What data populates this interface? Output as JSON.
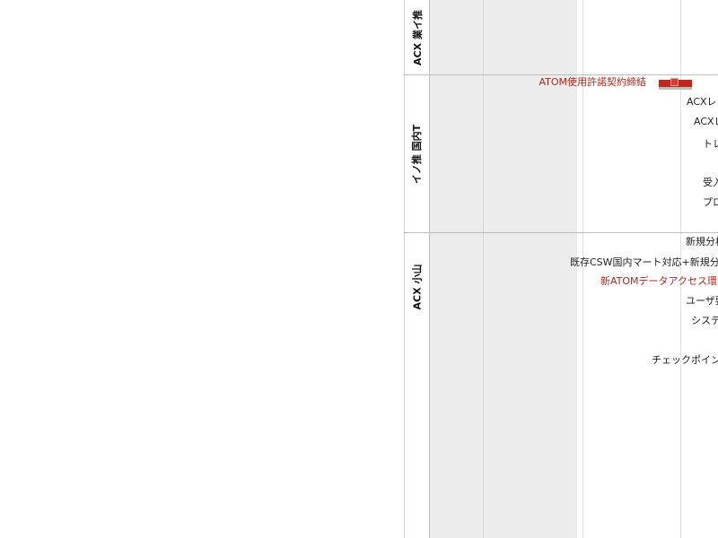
{
  "lanes": [
    {
      "label": "ACX 業イ推"
    },
    {
      "label": "イノ推 国内T"
    },
    {
      "label": "ACX 小山"
    }
  ],
  "tasks": [
    {
      "label": "ATOM使用許諾契約締結",
      "highlight": true
    },
    {
      "label": "ACXレ",
      "highlight": false
    },
    {
      "label": "ACXレ",
      "highlight": false
    },
    {
      "label": "トレ",
      "highlight": false
    },
    {
      "label": "受入",
      "highlight": false
    },
    {
      "label": "プロ",
      "highlight": false
    },
    {
      "label": "新規分析",
      "highlight": false
    },
    {
      "label": "既存CSW国内マート対応+新規分析",
      "highlight": false
    },
    {
      "label": "新ATOMデータアクセス環境",
      "highlight": true
    },
    {
      "label": "ユーザ要",
      "highlight": false
    },
    {
      "label": "システ",
      "highlight": false
    },
    {
      "label": "チェックポイン",
      "highlight": false
    }
  ],
  "colors": {
    "highlight_text": "#b0281b",
    "bar_fill": "#c0281a",
    "shade": "#ececec"
  }
}
